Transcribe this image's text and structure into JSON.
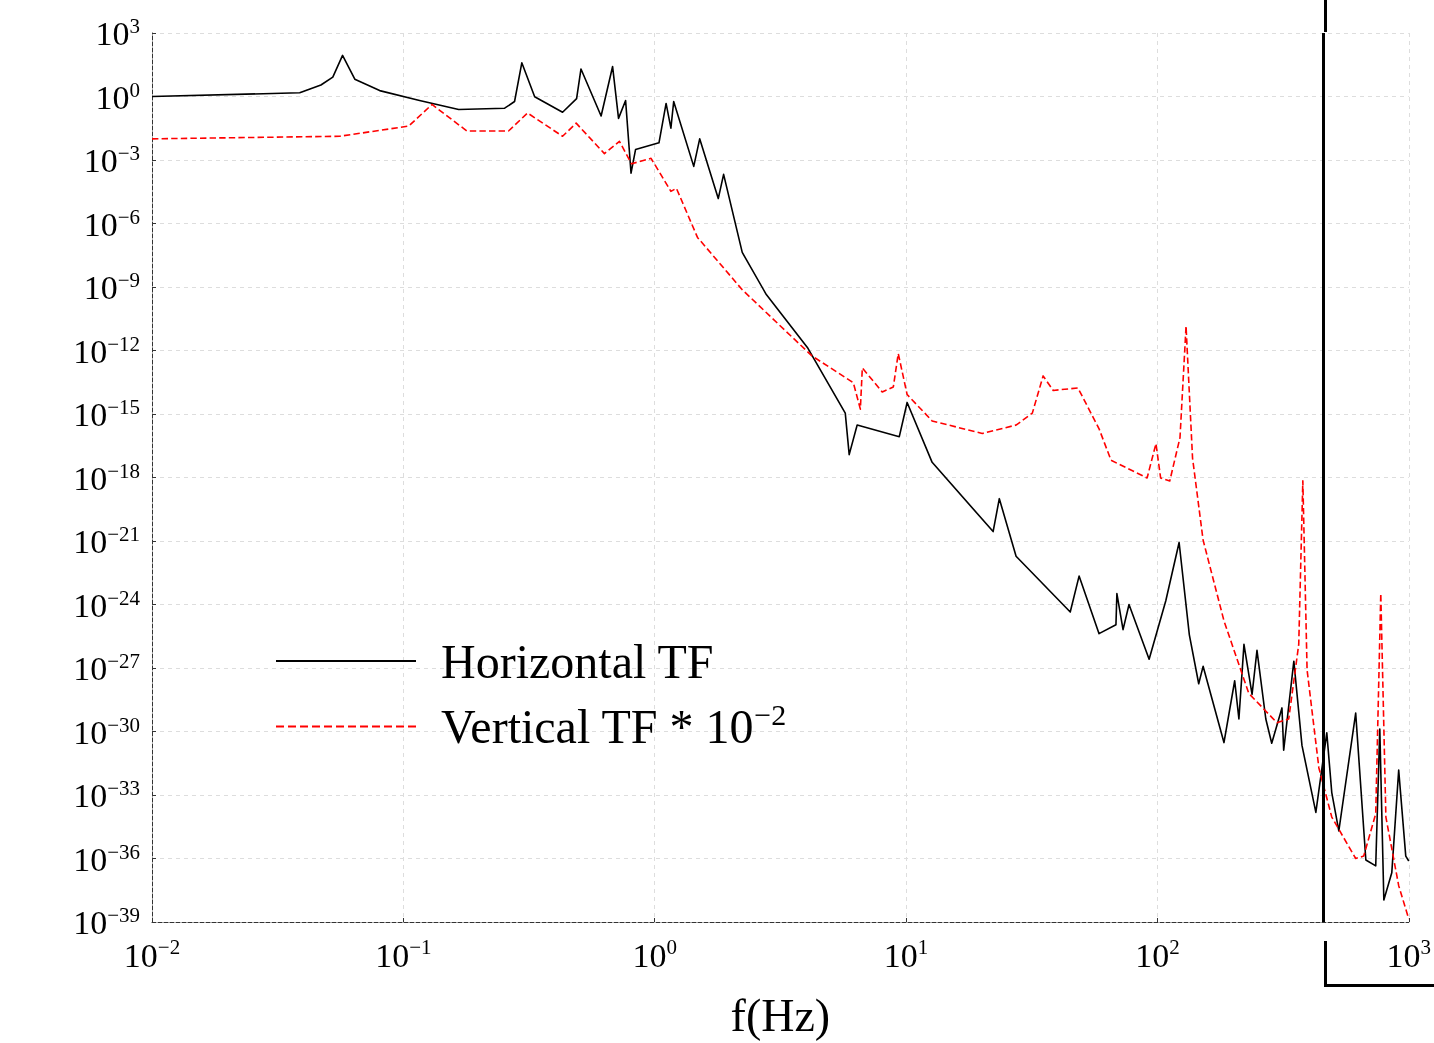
{
  "chart_data": {
    "type": "line",
    "xlabel": "f(Hz)",
    "log": "xy",
    "grid": true,
    "legend": "bottom left",
    "marker": "none",
    "xlim": [
      0.01,
      1000
    ],
    "ylim": [
      1e-39,
      1000
    ],
    "xticks": [
      {
        "value": 0.01,
        "label": "10$^{−2}$"
      },
      {
        "value": 0.1,
        "label": "10$^{−1}$"
      },
      {
        "value": 1,
        "label": "10$^{0}$"
      },
      {
        "value": 10,
        "label": "10$^{1}$"
      },
      {
        "value": 100,
        "label": "10$^{2}$"
      },
      {
        "value": 1000,
        "label": "10$^{3}$"
      }
    ],
    "yticks": [
      {
        "value": 1e-39,
        "label": "10$^{−39}$"
      },
      {
        "value": 1e-36,
        "label": "10$^{−36}$"
      },
      {
        "value": 1e-33,
        "label": "10$^{−33}$"
      },
      {
        "value": 1e-30,
        "label": "10$^{−30}$"
      },
      {
        "value": 1e-27,
        "label": "10$^{−27}$"
      },
      {
        "value": 1e-24,
        "label": "10$^{−24}$"
      },
      {
        "value": 1e-21,
        "label": "10$^{−21}$"
      },
      {
        "value": 1e-18,
        "label": "10$^{−18}$"
      },
      {
        "value": 1e-15,
        "label": "10$^{−15}$"
      },
      {
        "value": 1e-12,
        "label": "10$^{−12}$"
      },
      {
        "value": 1e-09,
        "label": "10$^{−9}$"
      },
      {
        "value": 1e-06,
        "label": "10$^{−6}$"
      },
      {
        "value": 0.001,
        "label": "10$^{−3}$"
      },
      {
        "value": 1,
        "label": "10$^{0}$"
      },
      {
        "value": 1000,
        "label": "10$^{3}$"
      }
    ],
    "ref_lines": [
      {
        "axis": "x",
        "value": 459,
        "color": "#000000",
        "line_style": "solid"
      }
    ],
    "series": [
      {
        "name": "Horizontal TF",
        "color": "#000000",
        "line_style": "solid",
        "x": [
          0.01,
          0.0387,
          0.047,
          0.0524,
          0.0573,
          0.0641,
          0.0805,
          0.116,
          0.166,
          0.253,
          0.277,
          0.296,
          0.333,
          0.43,
          0.489,
          0.509,
          0.612,
          0.68,
          0.718,
          0.766,
          0.805,
          0.839,
          1.04,
          1.11,
          1.16,
          1.19,
          1.43,
          1.51,
          1.79,
          1.88,
          2.23,
          2.78,
          4.05,
          5.73,
          5.94,
          6.39,
          9.4,
          10.1,
          12.7,
          22.2,
          23.5,
          27.4,
          45,
          48.8,
          58.6,
          68.4,
          69,
          73,
          77.1,
          92.7,
          108,
          122,
          134,
          146,
          152,
          184,
          203,
          211,
          221,
          238,
          249,
          270,
          285,
          313,
          318,
          349,
          376,
          427,
          472,
          494,
          527,
          615,
          675,
          739,
          767,
          796,
          856,
          912,
          973,
          1000
        ],
        "values": [
          1,
          1.5,
          3.5,
          8.3,
          87,
          6.6,
          1.9,
          0.65,
          0.245,
          0.28,
          0.58,
          39,
          0.98,
          0.18,
          0.79,
          20,
          0.12,
          26,
          0.093,
          0.65,
          0.00024,
          0.0031,
          0.0065,
          0.47,
          0.032,
          0.58,
          0.0005,
          0.01,
          1.5e-05,
          0.00021,
          4.3e-08,
          4.4e-10,
          1.4e-12,
          1.1e-15,
          1.2e-17,
          3e-16,
          8.5e-17,
          3.5e-15,
          5.2e-18,
          2.8e-21,
          1e-19,
          1.9e-22,
          4.4e-25,
          2.2e-23,
          4.2e-26,
          1.1e-25,
          3.3e-24,
          6.5e-26,
          1e-24,
          2.6e-27,
          1.5e-24,
          8.5e-22,
          3.7e-26,
          1.8e-28,
          1.2e-27,
          3e-31,
          2.5e-28,
          3.9e-30,
          1.3e-26,
          5.6e-29,
          6.8e-27,
          3.9e-30,
          2.8e-31,
          1.3e-29,
          1.3e-31,
          2.1e-27,
          2.2e-31,
          1.5e-34,
          8.7e-31,
          1.3e-33,
          2e-35,
          7.4e-30,
          8.5e-37,
          4.5e-37,
          1.3e-30,
          1.1e-38,
          2.1e-37,
          1.5e-32,
          1.3e-36,
          7.6e-37
        ]
      },
      {
        "name": "Vertical TF * 10$^{−2}$",
        "color": "#ff0000",
        "line_style": "dashed",
        "x": [
          0.01,
          0.0558,
          0.105,
          0.13,
          0.179,
          0.262,
          0.312,
          0.43,
          0.487,
          0.631,
          0.724,
          0.809,
          0.967,
          1.16,
          1.22,
          1.48,
          2.23,
          4.22,
          6.17,
          6.58,
          6.7,
          8.04,
          8.9,
          9.31,
          10.1,
          12.7,
          20.1,
          27.4,
          31.8,
          35.1,
          38.5,
          48.3,
          58.6,
          65.4,
          91,
          98.7,
          103,
          112,
          123,
          130,
          138,
          152,
          184,
          231,
          299,
          333,
          365,
          379,
          394,
          439,
          494,
          615,
          662,
          739,
          774,
          811,
          912,
          1000
        ],
        "values": [
          0.01,
          0.0132,
          0.04,
          0.42,
          0.0234,
          0.0234,
          0.166,
          0.0132,
          0.055,
          0.002,
          0.0076,
          0.00066,
          0.0012,
          3.3e-05,
          4.6e-05,
          2.2e-07,
          7.4e-10,
          5.6e-13,
          3e-14,
          1.7e-15,
          1.5e-13,
          1.1e-14,
          1.9e-14,
          7.2e-13,
          8.3e-15,
          4.7e-16,
          1.2e-16,
          3e-16,
          1.1e-15,
          6.3e-14,
          1.3e-14,
          1.7e-14,
          2e-16,
          6.5e-18,
          9.5e-19,
          4e-17,
          9.5e-19,
          6.9e-19,
          7.6e-17,
          1.4e-11,
          8.1e-18,
          1.1e-21,
          1.7e-25,
          6.3e-29,
          2.6e-30,
          3.9e-30,
          1.3e-26,
          6.9e-19,
          8.1e-28,
          1.9e-32,
          9.1e-35,
          1e-36,
          1.3e-36,
          1.3e-34,
          3.3e-24,
          9.1e-35,
          5.2e-38,
          1.4e-39
        ]
      }
    ]
  }
}
